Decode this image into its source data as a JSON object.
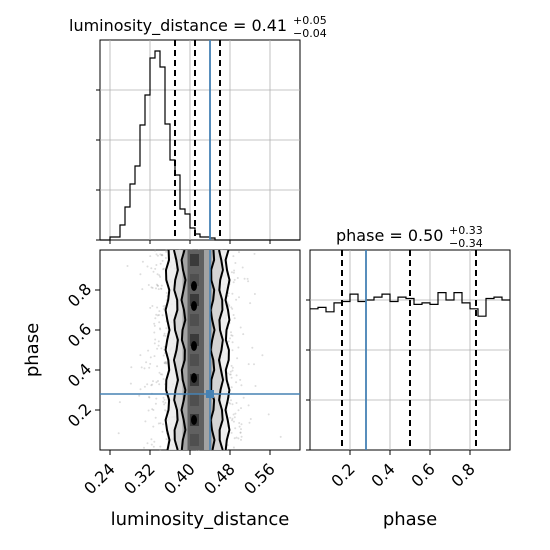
{
  "chart_data": {
    "type": "corner",
    "truth_color": "#4682b4",
    "panels": [
      {
        "type": "histogram",
        "position": "top-left",
        "title": {
          "main": "luminosity_distance = 0.41",
          "sup": "+0.05",
          "sub": "−0.04"
        },
        "x_range": [
          0.22,
          0.62
        ],
        "bin_width": 0.01,
        "bin_edges_start": 0.22,
        "counts": [
          0,
          0,
          0.3,
          0.3,
          1.5,
          3.3,
          5.6,
          7.4,
          11.5,
          14.5,
          18.2,
          18.9,
          17.3,
          11.6,
          8.0,
          6.5,
          3.1,
          2.6,
          1.2,
          0.6,
          0.3,
          0.3,
          0.2,
          0,
          0,
          0,
          0,
          0,
          0,
          0,
          0,
          0,
          0,
          0,
          0,
          0,
          0,
          0,
          0,
          0
        ],
        "y_max": 20,
        "quantiles": [
          0.37,
          0.41,
          0.46
        ],
        "truth": 0.44,
        "x_ticks": [
          0.24,
          0.32,
          0.4,
          0.48,
          0.56
        ],
        "grid": true
      },
      {
        "type": "histogram",
        "position": "bottom-right",
        "title": {
          "main": "phase = 0.50",
          "sup": "+0.33",
          "sub": "−0.34"
        },
        "x_range": [
          0.0,
          1.0
        ],
        "bin_width": 0.04,
        "bin_edges_start": 0.0,
        "counts": [
          9.6,
          9.7,
          9.4,
          10.0,
          10.1,
          10.6,
          10.1,
          10.2,
          10.4,
          10.6,
          10.1,
          10.4,
          10.3,
          9.9,
          10.0,
          9.9,
          10.7,
          10.2,
          10.7,
          10.0,
          9.6,
          9.1,
          10.3,
          10.4,
          10.2
        ],
        "y_max": 13.6,
        "quantiles": [
          0.16,
          0.5,
          0.83
        ],
        "truth": 0.28,
        "x_ticks": [
          0.2,
          0.4,
          0.6,
          0.8
        ],
        "grid": true
      },
      {
        "type": "2d-density",
        "position": "bottom-left",
        "x_range": [
          0.22,
          0.62
        ],
        "y_range": [
          0.0,
          1.0
        ],
        "x_ticks": [
          0.24,
          0.32,
          0.4,
          0.48,
          0.56
        ],
        "y_ticks": [
          0.2,
          0.4,
          0.6,
          0.8
        ],
        "truth": {
          "x": 0.44,
          "y": 0.28
        },
        "x_label": "luminosity_distance",
        "y_label": "phase"
      }
    ],
    "x_labels": [
      "luminosity_distance",
      "phase"
    ],
    "y_label": "phase"
  }
}
